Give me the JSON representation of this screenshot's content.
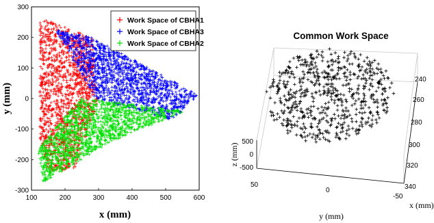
{
  "chart_data": [
    {
      "type": "scatter",
      "title": "",
      "xlabel": "x (mm)",
      "ylabel": "y (mm)",
      "xlim": [
        100,
        600
      ],
      "ylim": [
        -300,
        300
      ],
      "xticks": [
        100,
        200,
        300,
        400,
        500,
        600
      ],
      "yticks": [
        -300,
        -200,
        -100,
        0,
        100,
        200,
        300
      ],
      "grid": false,
      "legend_position": "top-right",
      "marker": "plus",
      "series": [
        {
          "name": "Work Space of CBHA1",
          "color": "#ff0000",
          "region": [
            [
              125,
              265
            ],
            [
              280,
              200
            ],
            [
              300,
              0
            ],
            [
              230,
              -230
            ],
            [
              150,
              -240
            ],
            [
              125,
              -130
            ]
          ]
        },
        {
          "name": "Work Space of CBHA3",
          "color": "#0000ff",
          "region": [
            [
              170,
              225
            ],
            [
              280,
              200
            ],
            [
              600,
              10
            ],
            [
              520,
              -70
            ],
            [
              290,
              0
            ],
            [
              250,
              80
            ]
          ]
        },
        {
          "name": "Work Space of CBHA2",
          "color": "#00e000",
          "region": [
            [
              250,
              0
            ],
            [
              560,
              -40
            ],
            [
              340,
              -140
            ],
            [
              135,
              -275
            ],
            [
              120,
              -170
            ],
            [
              170,
              -90
            ]
          ]
        }
      ]
    },
    {
      "type": "scatter",
      "title": "Common Work Space",
      "xlabel": "x (mm)",
      "ylabel": "y (mm)",
      "zlabel": "z (mm)",
      "xticks": [
        240,
        260,
        280,
        300,
        320,
        340
      ],
      "yticks": [
        50,
        0,
        -50
      ],
      "zticks": [
        500,
        0,
        -500
      ],
      "marker": "plus",
      "series": [
        {
          "color": "#000000"
        }
      ]
    }
  ]
}
